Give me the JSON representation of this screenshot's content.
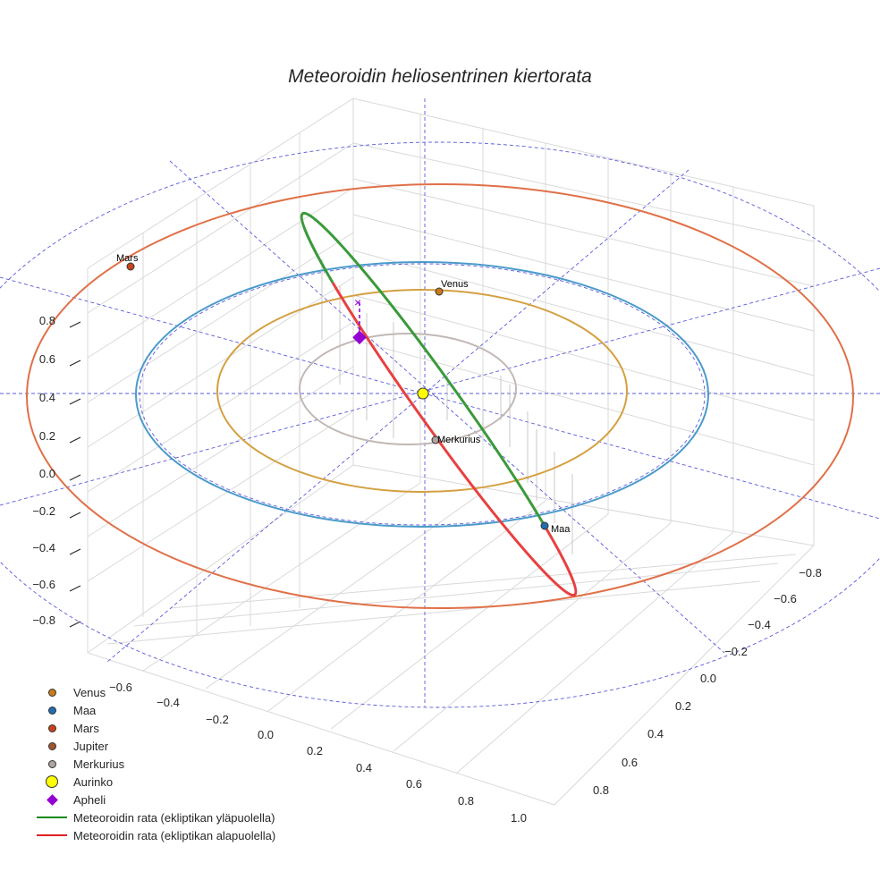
{
  "chart_data": {
    "type": "line",
    "title": "Meteoroidin heliosentrinen kiertorata",
    "projection": "3d",
    "axes": {
      "x_ticks": [
        "−0.6",
        "−0.4",
        "−0.2",
        "0.0",
        "0.2",
        "0.4",
        "0.6",
        "0.8",
        "1.0"
      ],
      "y_ticks": [
        "−0.8",
        "−0.6",
        "−0.4",
        "−0.2",
        "0.0",
        "0.2",
        "0.4",
        "0.6",
        "0.8"
      ],
      "z_ticks": [
        "0.8",
        "0.6",
        "0.4",
        "0.2",
        "0.0",
        "−0.2",
        "−0.4",
        "−0.6",
        "−0.8"
      ]
    },
    "orbits": [
      {
        "name": "Merkurius",
        "radius_au": 0.39,
        "color": "#c2b8b4"
      },
      {
        "name": "Venus",
        "radius_au": 0.72,
        "color": "#d4a040"
      },
      {
        "name": "Maa",
        "radius_au": 1.0,
        "color": "#4a9acb"
      },
      {
        "name": "Mars",
        "radius_au": 1.52,
        "color": "#e07048"
      }
    ],
    "planet_labels": {
      "mars": "Mars",
      "venus": "Venus",
      "merkurius": "Merkurius",
      "maa": "Maa"
    },
    "legend": [
      {
        "label": "Venus",
        "color": "#c97a1a",
        "marker": "circle"
      },
      {
        "label": "Maa",
        "color": "#1f6fb0",
        "marker": "circle"
      },
      {
        "label": "Mars",
        "color": "#c8431b",
        "marker": "circle"
      },
      {
        "label": "Jupiter",
        "color": "#a0552d",
        "marker": "circle"
      },
      {
        "label": "Merkurius",
        "color": "#b0a4a0",
        "marker": "circle"
      },
      {
        "label": "Aurinko",
        "color": "#ffff00",
        "marker": "circle"
      },
      {
        "label": "Apheli",
        "color": "#9400d3",
        "marker": "diamond"
      },
      {
        "label": "Meteoroidin rata (ekliptikan yläpuolella)",
        "color": "#1a8a1a",
        "marker": "line"
      },
      {
        "label": "Meteoroidin rata (ekliptikan alapuolella)",
        "color": "#e02020",
        "marker": "line"
      }
    ],
    "legend_position": "lower-left"
  }
}
